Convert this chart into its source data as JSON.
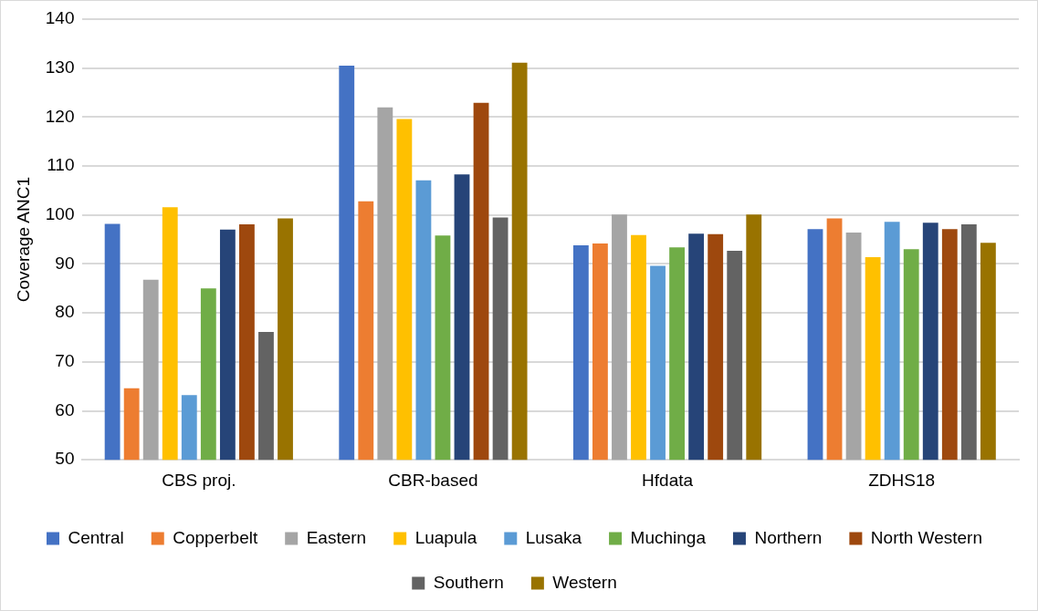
{
  "chart_data": {
    "type": "bar",
    "ylabel": "Coverage ANC1",
    "categories": [
      "CBS proj.",
      "CBR-based",
      "Hfdata",
      "ZDHS18"
    ],
    "ylim": [
      50,
      140
    ],
    "yticks": [
      50,
      60,
      70,
      80,
      90,
      100,
      110,
      120,
      130,
      140
    ],
    "grid": "y",
    "legend": "bottom",
    "series": [
      {
        "name": "Central",
        "color": "#4472c4",
        "values": [
          98.2,
          130.5,
          93.8,
          97.1
        ]
      },
      {
        "name": "Copperbelt",
        "color": "#ed7d31",
        "values": [
          64.6,
          102.8,
          94.2,
          99.3
        ]
      },
      {
        "name": "Eastern",
        "color": "#a5a5a5",
        "values": [
          86.8,
          122.0,
          100.1,
          96.4
        ]
      },
      {
        "name": "Luapula",
        "color": "#ffc000",
        "values": [
          101.6,
          119.6,
          95.9,
          91.4
        ]
      },
      {
        "name": "Lusaka",
        "color": "#5b9bd5",
        "values": [
          63.2,
          107.1,
          89.6,
          98.6
        ]
      },
      {
        "name": "Muchinga",
        "color": "#70ad47",
        "values": [
          85.0,
          95.8,
          93.4,
          93.0
        ]
      },
      {
        "name": "Northern",
        "color": "#264478",
        "values": [
          97.0,
          108.3,
          96.2,
          98.4
        ]
      },
      {
        "name": "North Western",
        "color": "#9e480e",
        "values": [
          98.1,
          122.9,
          96.1,
          97.1
        ]
      },
      {
        "name": "Southern",
        "color": "#636363",
        "values": [
          76.1,
          99.5,
          92.7,
          98.1
        ]
      },
      {
        "name": "Western",
        "color": "#997300",
        "values": [
          99.3,
          131.1,
          100.1,
          94.3
        ]
      }
    ]
  }
}
